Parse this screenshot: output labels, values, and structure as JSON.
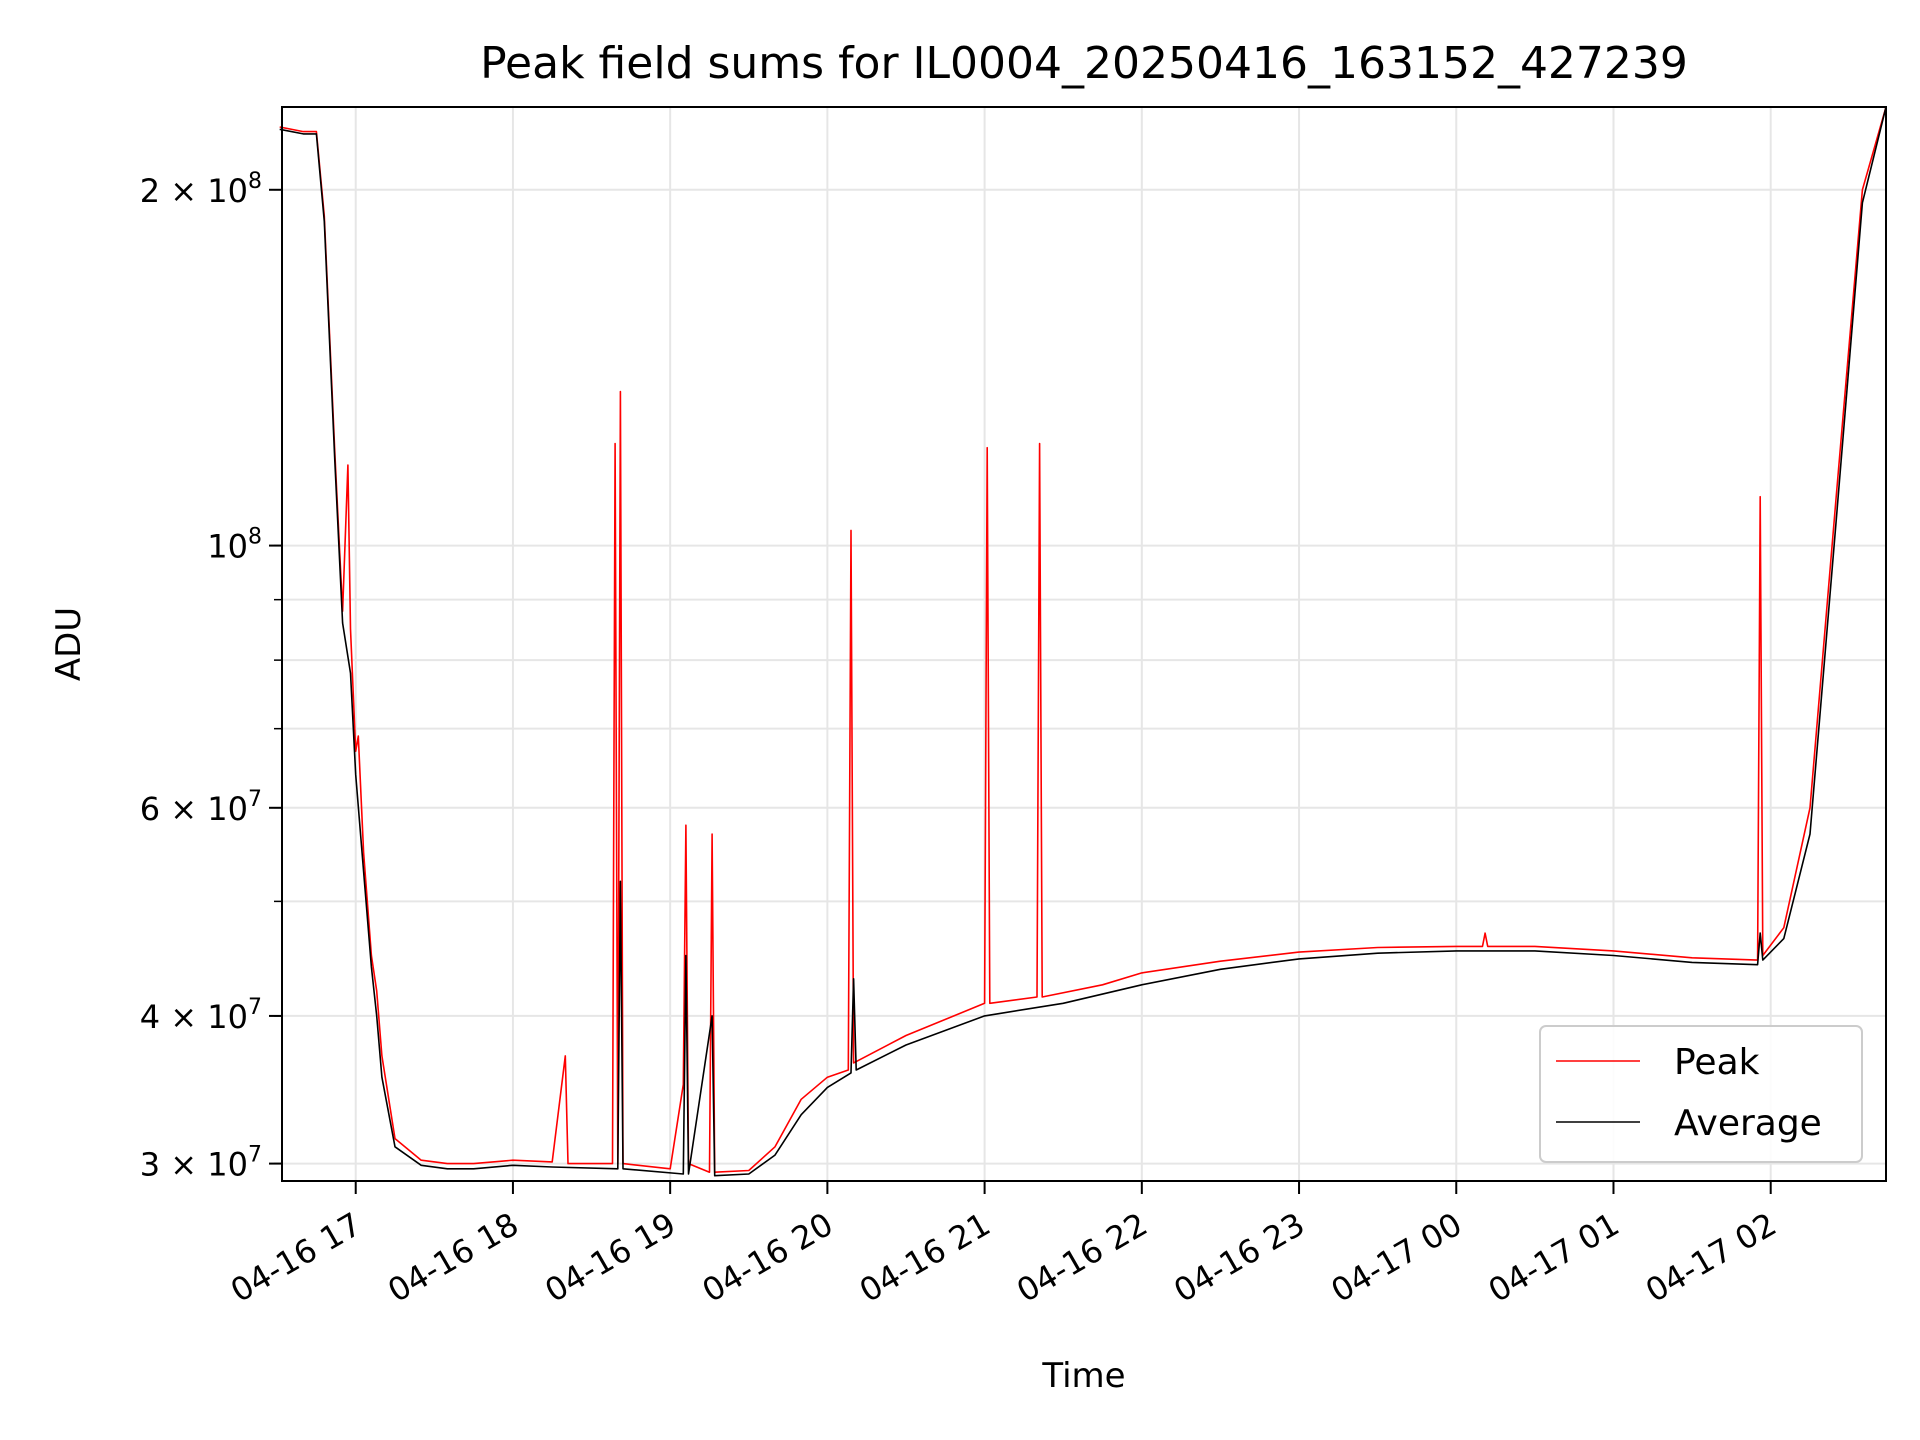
{
  "chart_data": {
    "type": "line",
    "title": "Peak field sums for IL0004_20250416_163152_427239",
    "xlabel": "Time",
    "ylabel": "ADU",
    "yscale": "log",
    "ylim": [
      29000000,
      235000000
    ],
    "xlim": [
      "2025-04-16 16:31:52",
      "2025-04-17 02:44:00"
    ],
    "grid": true,
    "legend_position": "lower-right",
    "x_ticks": [
      "04-16 17",
      "04-16 18",
      "04-16 19",
      "04-16 20",
      "04-16 21",
      "04-16 22",
      "04-16 23",
      "04-17 00",
      "04-17 01",
      "04-17 02"
    ],
    "y_ticks": [
      {
        "value": 30000000,
        "mantissa": "3",
        "exp": "7"
      },
      {
        "value": 40000000,
        "mantissa": "4",
        "exp": "7"
      },
      {
        "value": 60000000,
        "mantissa": "6",
        "exp": "7"
      },
      {
        "value": 100000000,
        "mantissa": "",
        "exp": "8"
      },
      {
        "value": 200000000,
        "mantissa": "2",
        "exp": "8"
      }
    ],
    "series": [
      {
        "name": "Peak",
        "color": "#ff0000",
        "points": [
          [
            "2025-04-16 16:31",
            226000000
          ],
          [
            "2025-04-16 16:40",
            224000000
          ],
          [
            "2025-04-16 16:45",
            224000000
          ],
          [
            "2025-04-16 16:48",
            190000000
          ],
          [
            "2025-04-16 16:52",
            120000000
          ],
          [
            "2025-04-16 16:55",
            88000000
          ],
          [
            "2025-04-16 16:57",
            117000000
          ],
          [
            "2025-04-16 16:58",
            85000000
          ],
          [
            "2025-04-16 17:00",
            67000000
          ],
          [
            "2025-04-16 17:01",
            69000000
          ],
          [
            "2025-04-16 17:03",
            55000000
          ],
          [
            "2025-04-16 17:06",
            45000000
          ],
          [
            "2025-04-16 17:08",
            42000000
          ],
          [
            "2025-04-16 17:10",
            37000000
          ],
          [
            "2025-04-16 17:15",
            31500000
          ],
          [
            "2025-04-16 17:25",
            30200000
          ],
          [
            "2025-04-16 17:35",
            30000000
          ],
          [
            "2025-04-16 17:45",
            30000000
          ],
          [
            "2025-04-16 18:00",
            30200000
          ],
          [
            "2025-04-16 18:15",
            30100000
          ],
          [
            "2025-04-16 18:20",
            37000000
          ],
          [
            "2025-04-16 18:21",
            30000000
          ],
          [
            "2025-04-16 18:38",
            30000000
          ],
          [
            "2025-04-16 18:39",
            122000000
          ],
          [
            "2025-04-16 18:40",
            30000000
          ],
          [
            "2025-04-16 18:41",
            135000000
          ],
          [
            "2025-04-16 18:42",
            30000000
          ],
          [
            "2025-04-16 19:00",
            29700000
          ],
          [
            "2025-04-16 19:05",
            35000000
          ],
          [
            "2025-04-16 19:06",
            58000000
          ],
          [
            "2025-04-16 19:07",
            30000000
          ],
          [
            "2025-04-16 19:15",
            29500000
          ],
          [
            "2025-04-16 19:16",
            57000000
          ],
          [
            "2025-04-16 19:17",
            29500000
          ],
          [
            "2025-04-16 19:30",
            29600000
          ],
          [
            "2025-04-16 19:40",
            31000000
          ],
          [
            "2025-04-16 19:50",
            34000000
          ],
          [
            "2025-04-16 20:00",
            35500000
          ],
          [
            "2025-04-16 20:08",
            36000000
          ],
          [
            "2025-04-16 20:09",
            103000000
          ],
          [
            "2025-04-16 20:10",
            36500000
          ],
          [
            "2025-04-16 20:30",
            38500000
          ],
          [
            "2025-04-16 21:00",
            41000000
          ],
          [
            "2025-04-16 21:01",
            121000000
          ],
          [
            "2025-04-16 21:02",
            41000000
          ],
          [
            "2025-04-16 21:20",
            41500000
          ],
          [
            "2025-04-16 21:21",
            122000000
          ],
          [
            "2025-04-16 21:22",
            41500000
          ],
          [
            "2025-04-16 21:45",
            42500000
          ],
          [
            "2025-04-16 22:00",
            43500000
          ],
          [
            "2025-04-16 22:30",
            44500000
          ],
          [
            "2025-04-16 23:00",
            45300000
          ],
          [
            "2025-04-16 23:30",
            45700000
          ],
          [
            "2025-04-17 00:00",
            45800000
          ],
          [
            "2025-04-17 00:10",
            45800000
          ],
          [
            "2025-04-17 00:11",
            47000000
          ],
          [
            "2025-04-17 00:12",
            45800000
          ],
          [
            "2025-04-17 00:30",
            45800000
          ],
          [
            "2025-04-17 01:00",
            45400000
          ],
          [
            "2025-04-17 01:30",
            44800000
          ],
          [
            "2025-04-17 01:55",
            44600000
          ],
          [
            "2025-04-17 01:56",
            110000000
          ],
          [
            "2025-04-17 01:57",
            45000000
          ],
          [
            "2025-04-17 02:05",
            47500000
          ],
          [
            "2025-04-17 02:15",
            60000000
          ],
          [
            "2025-04-17 02:25",
            110000000
          ],
          [
            "2025-04-17 02:35",
            200000000
          ],
          [
            "2025-04-17 02:44",
            235000000
          ]
        ]
      },
      {
        "name": "Average",
        "color": "#000000",
        "points": [
          [
            "2025-04-16 16:31",
            225000000
          ],
          [
            "2025-04-16 16:40",
            223000000
          ],
          [
            "2025-04-16 16:45",
            223000000
          ],
          [
            "2025-04-16 16:48",
            188000000
          ],
          [
            "2025-04-16 16:52",
            118000000
          ],
          [
            "2025-04-16 16:55",
            86000000
          ],
          [
            "2025-04-16 16:58",
            78000000
          ],
          [
            "2025-04-16 17:00",
            64000000
          ],
          [
            "2025-04-16 17:03",
            53000000
          ],
          [
            "2025-04-16 17:06",
            44000000
          ],
          [
            "2025-04-16 17:08",
            40000000
          ],
          [
            "2025-04-16 17:10",
            35500000
          ],
          [
            "2025-04-16 17:15",
            31000000
          ],
          [
            "2025-04-16 17:25",
            29900000
          ],
          [
            "2025-04-16 17:35",
            29700000
          ],
          [
            "2025-04-16 17:45",
            29700000
          ],
          [
            "2025-04-16 18:00",
            29900000
          ],
          [
            "2025-04-16 18:15",
            29800000
          ],
          [
            "2025-04-16 18:40",
            29700000
          ],
          [
            "2025-04-16 18:41",
            52000000
          ],
          [
            "2025-04-16 18:42",
            29700000
          ],
          [
            "2025-04-16 19:05",
            29400000
          ],
          [
            "2025-04-16 19:06",
            45000000
          ],
          [
            "2025-04-16 19:07",
            29400000
          ],
          [
            "2025-04-16 19:16",
            40000000
          ],
          [
            "2025-04-16 19:17",
            29300000
          ],
          [
            "2025-04-16 19:30",
            29400000
          ],
          [
            "2025-04-16 19:40",
            30500000
          ],
          [
            "2025-04-16 19:50",
            33000000
          ],
          [
            "2025-04-16 20:00",
            34800000
          ],
          [
            "2025-04-16 20:09",
            35800000
          ],
          [
            "2025-04-16 20:10",
            43000000
          ],
          [
            "2025-04-16 20:11",
            36000000
          ],
          [
            "2025-04-16 20:30",
            37800000
          ],
          [
            "2025-04-16 21:00",
            40000000
          ],
          [
            "2025-04-16 21:30",
            41000000
          ],
          [
            "2025-04-16 22:00",
            42500000
          ],
          [
            "2025-04-16 22:30",
            43800000
          ],
          [
            "2025-04-16 23:00",
            44700000
          ],
          [
            "2025-04-16 23:30",
            45200000
          ],
          [
            "2025-04-17 00:00",
            45400000
          ],
          [
            "2025-04-17 00:30",
            45400000
          ],
          [
            "2025-04-17 01:00",
            45000000
          ],
          [
            "2025-04-17 01:30",
            44400000
          ],
          [
            "2025-04-17 01:55",
            44200000
          ],
          [
            "2025-04-17 01:56",
            47000000
          ],
          [
            "2025-04-17 01:57",
            44600000
          ],
          [
            "2025-04-17 02:05",
            46500000
          ],
          [
            "2025-04-17 02:15",
            57000000
          ],
          [
            "2025-04-17 02:25",
            105000000
          ],
          [
            "2025-04-17 02:35",
            195000000
          ],
          [
            "2025-04-17 02:44",
            235000000
          ]
        ]
      }
    ]
  }
}
